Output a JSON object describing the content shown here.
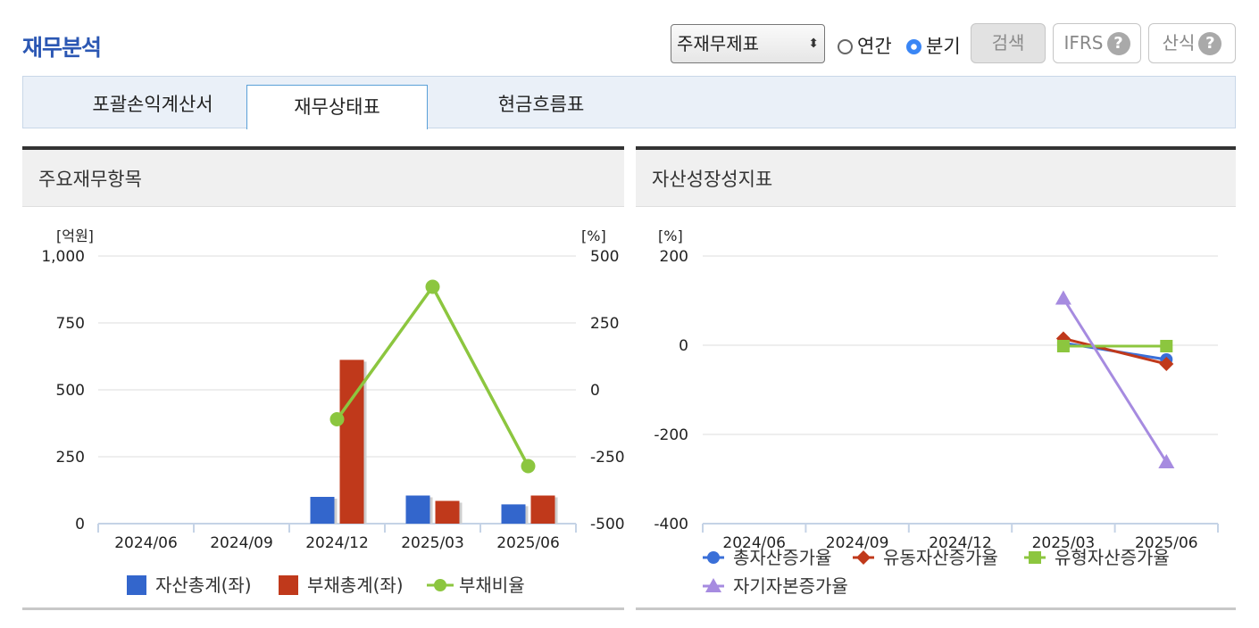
{
  "header": {
    "title": "재무분석",
    "select_value": "주재무제표",
    "radio_annual": "연간",
    "radio_quarter": "분기",
    "search_label": "검색",
    "ifrs_label": "IFRS",
    "formula_label": "산식",
    "help_glyph": "?"
  },
  "tabs": [
    {
      "label": "포괄손익계산서",
      "active": false
    },
    {
      "label": "재무상태표",
      "active": true
    },
    {
      "label": "현금흐름표",
      "active": false
    }
  ],
  "left_panel": {
    "title": "주요재무항목",
    "chart_data": {
      "type": "bar",
      "categories": [
        "2024/06",
        "2024/09",
        "2024/12",
        "2025/03",
        "2025/06"
      ],
      "y_left_unit": "[억원]",
      "y_right_unit": "[%]",
      "y_left_ticks": [
        "1,000",
        "750",
        "500",
        "250",
        "0"
      ],
      "y_right_ticks": [
        "500",
        "250",
        "0",
        "-250",
        "-500"
      ],
      "ylim_left": [
        0,
        1000
      ],
      "ylim_right": [
        -500,
        500
      ],
      "series": [
        {
          "name": "자산총계(좌)",
          "kind": "bar",
          "axis": "left",
          "color": "#3366cc",
          "values": [
            null,
            null,
            100,
            105,
            72
          ]
        },
        {
          "name": "부채총계(좌)",
          "kind": "bar",
          "axis": "left",
          "color": "#c0391b",
          "values": [
            null,
            null,
            612,
            85,
            105
          ]
        },
        {
          "name": "부채비율",
          "kind": "line",
          "axis": "right",
          "color": "#8cc63f",
          "values": [
            null,
            null,
            -110,
            385,
            -285
          ]
        }
      ]
    }
  },
  "right_panel": {
    "title": "자산성장성지표",
    "chart_data": {
      "type": "line",
      "categories": [
        "2024/06",
        "2024/09",
        "2024/12",
        "2025/03",
        "2025/06"
      ],
      "y_unit": "[%]",
      "y_ticks": [
        "200",
        "0",
        "-200",
        "-400"
      ],
      "ylim": [
        -400,
        200
      ],
      "series": [
        {
          "name": "총자산증가율",
          "marker": "circle",
          "color": "#3a6fd8",
          "values": [
            null,
            null,
            null,
            5,
            -32
          ]
        },
        {
          "name": "유동자산증가율",
          "marker": "diamond",
          "color": "#c0391b",
          "values": [
            null,
            null,
            null,
            15,
            -42
          ]
        },
        {
          "name": "유형자산증가율",
          "marker": "square",
          "color": "#8cc63f",
          "values": [
            null,
            null,
            null,
            -2,
            -2
          ]
        },
        {
          "name": "자기자본증가율",
          "marker": "triangle",
          "color": "#a68be0",
          "values": [
            null,
            null,
            null,
            105,
            -262
          ]
        }
      ]
    }
  }
}
